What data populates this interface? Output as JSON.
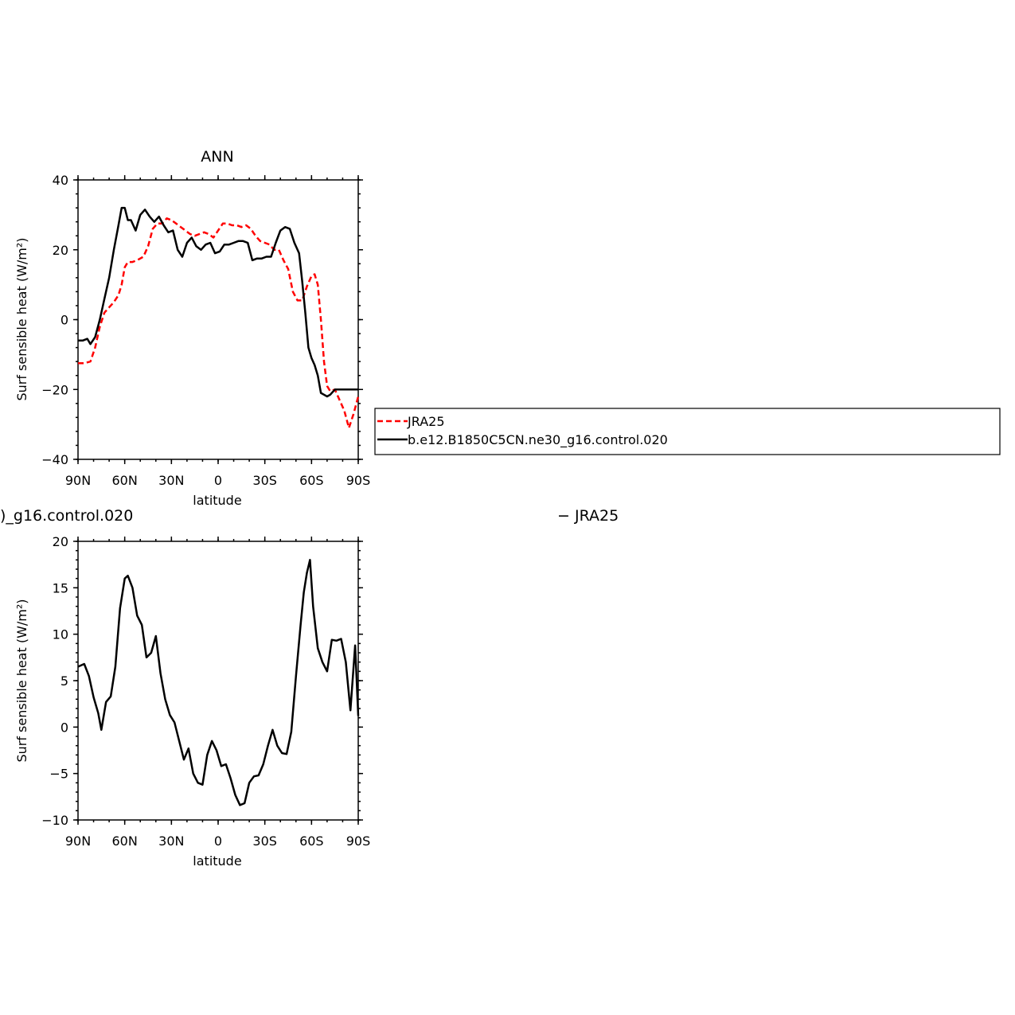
{
  "chart_data": [
    {
      "type": "line",
      "title": "ANN",
      "xlabel": "latitude",
      "ylabel": "Surf sensible heat (W/m²)",
      "xlim": [
        90,
        -90
      ],
      "ylim": [
        -40,
        40
      ],
      "xticks": [
        90,
        60,
        30,
        0,
        -30,
        -60,
        -90
      ],
      "xtick_labels": [
        "90N",
        "60N",
        "30N",
        "0",
        "30S",
        "60S",
        "90S"
      ],
      "yticks": [
        -40,
        -20,
        0,
        20,
        40
      ],
      "ytick_labels": [
        "−40",
        "−20",
        "0",
        "20",
        "40"
      ],
      "grid": false,
      "legend_position": "right",
      "series": [
        {
          "name": "JRA25",
          "color": "#ff0000",
          "dash": "dashed",
          "x": [
            90,
            86,
            82,
            79,
            76,
            73,
            70,
            67,
            64,
            62,
            60,
            58,
            55,
            52,
            48,
            45,
            42,
            39,
            36,
            33,
            30,
            27,
            24,
            21,
            18,
            15,
            12,
            9,
            6,
            3,
            0,
            -3,
            -6,
            -9,
            -12,
            -15,
            -18,
            -21,
            -24,
            -27,
            -30,
            -33,
            -36,
            -39,
            -42,
            -45,
            -48,
            -51,
            -54,
            -57,
            -60,
            -62,
            -64,
            -66,
            -68,
            -70,
            -72,
            -75,
            -78,
            -81,
            -84,
            -87,
            -90
          ],
          "y": [
            -12.5,
            -12.5,
            -12,
            -8,
            -2,
            2,
            3.5,
            5,
            7,
            10,
            15,
            16.5,
            16.5,
            17,
            18,
            21,
            26,
            27.5,
            27.5,
            29,
            28.5,
            27.5,
            26.5,
            25.5,
            24.5,
            24,
            24.5,
            25,
            24.5,
            23.5,
            25.5,
            27.5,
            27.5,
            27,
            27,
            26.5,
            27,
            26,
            24,
            22.5,
            22,
            21.5,
            20,
            20,
            17,
            14.5,
            8,
            5.5,
            5.5,
            9.5,
            12.5,
            13,
            10,
            0,
            -12,
            -19,
            -20.5,
            -20,
            -23,
            -26,
            -31,
            -27,
            -22
          ]
        },
        {
          "name": "b.e12.B1850C5CN.ne30_g16.control.020",
          "color": "#000000",
          "dash": "solid",
          "x": [
            90,
            87,
            84,
            82,
            79,
            76,
            73,
            70,
            67,
            64,
            62,
            60,
            58,
            56,
            53,
            50,
            47,
            44,
            41,
            38,
            35,
            32,
            29,
            26,
            23,
            20,
            17,
            14,
            11,
            8,
            5,
            2,
            -1,
            -4,
            -7,
            -10,
            -13,
            -16,
            -19,
            -22,
            -25,
            -28,
            -31,
            -34,
            -37,
            -40,
            -43,
            -46,
            -49,
            -52,
            -54,
            -56,
            -58,
            -60,
            -62,
            -64,
            -66,
            -68,
            -70,
            -72,
            -75,
            -78,
            -81,
            -84,
            -87,
            -90
          ],
          "y": [
            -6,
            -6,
            -5.5,
            -7,
            -5,
            0,
            6,
            12,
            20,
            27,
            32,
            32,
            28.5,
            28.5,
            25.5,
            30,
            31.5,
            29.5,
            28,
            29.5,
            27,
            25,
            25.5,
            20,
            18,
            22,
            23.5,
            21,
            20,
            21.5,
            22,
            19,
            19.5,
            21.5,
            21.5,
            22,
            22.5,
            22.5,
            22,
            17,
            17.5,
            17.5,
            18,
            18,
            22,
            25.5,
            26.5,
            26,
            22,
            19,
            11,
            2,
            -8,
            -11,
            -13,
            -16,
            -21,
            -21.5,
            -22,
            -21.5,
            -20,
            -20,
            -20,
            -20,
            -20,
            -20
          ]
        }
      ]
    },
    {
      "type": "line",
      "title_left_fragment": ")_g16.control.020",
      "title_right_fragment": "− JRA25",
      "xlabel": "latitude",
      "ylabel": "Surf sensible heat (W/m²)",
      "xlim": [
        90,
        -90
      ],
      "ylim": [
        -10,
        20
      ],
      "xticks": [
        90,
        60,
        30,
        0,
        -30,
        -60,
        -90
      ],
      "xtick_labels": [
        "90N",
        "60N",
        "30N",
        "0",
        "30S",
        "60S",
        "90S"
      ],
      "yticks": [
        -10,
        -5,
        0,
        5,
        10,
        15,
        20
      ],
      "ytick_labels": [
        "−10",
        "−5",
        "0",
        "5",
        "10",
        "15",
        "20"
      ],
      "grid": false,
      "series": [
        {
          "color": "#000000",
          "dash": "solid",
          "x": [
            90,
            86,
            83,
            80,
            77,
            75,
            72,
            69,
            66,
            63,
            60,
            58,
            55,
            52,
            49,
            46,
            43,
            40,
            37,
            34,
            31,
            28,
            25,
            22,
            19,
            16,
            13,
            10,
            7,
            4,
            1,
            -2,
            -5,
            -8,
            -11,
            -14,
            -17,
            -20,
            -23,
            -26,
            -29,
            -32,
            -35,
            -38,
            -41,
            -44,
            -47,
            -50,
            -53,
            -55,
            -57,
            -59,
            -61,
            -64,
            -67,
            -70,
            -73,
            -76,
            -79,
            -82,
            -85,
            -88,
            -90
          ],
          "y": [
            6.5,
            6.8,
            5.5,
            3.2,
            1.5,
            -0.3,
            2.7,
            3.3,
            6.5,
            12.8,
            16,
            16.3,
            15,
            12,
            11,
            7.5,
            8,
            9.8,
            5.8,
            3,
            1.3,
            0.5,
            -1.5,
            -3.5,
            -2.3,
            -5,
            -6,
            -6.2,
            -3,
            -1.5,
            -2.5,
            -4.2,
            -4,
            -5.5,
            -7.3,
            -8.4,
            -8.2,
            -6,
            -5.3,
            -5.2,
            -4,
            -2,
            -0.3,
            -2,
            -2.8,
            -2.9,
            -0.5,
            5.5,
            11,
            14.5,
            16.6,
            18,
            13,
            8.5,
            7,
            6,
            9.4,
            9.3,
            9.5,
            7,
            1.8,
            8.8,
            1.2
          ]
        }
      ]
    }
  ]
}
